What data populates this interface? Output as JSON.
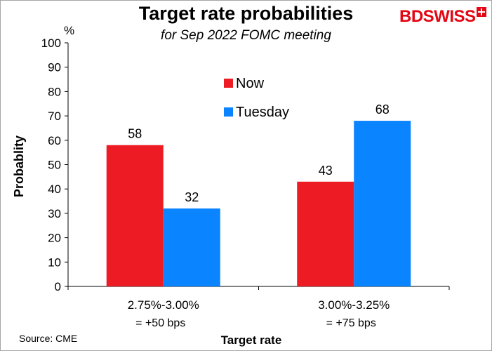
{
  "header": {
    "title": "Target rate probabilities",
    "subtitle": "for Sep 2022 FOMC meeting",
    "logo_text": "BDSWISS",
    "logo_icon": "plus-icon",
    "brand_color": "#e30613"
  },
  "footer": {
    "source": "Source: CME"
  },
  "chart_data": {
    "type": "bar",
    "title": "Target rate probabilities",
    "subtitle": "for Sep 2022 FOMC meeting",
    "xlabel": "Target rate",
    "ylabel": "Probablity",
    "y_unit": "%",
    "ylim": [
      0,
      100
    ],
    "yticks": [
      0,
      10,
      20,
      30,
      40,
      50,
      60,
      70,
      80,
      90,
      100
    ],
    "grid": false,
    "legend_position": "top-center",
    "categories": [
      [
        "2.75%-3.00%",
        "= +50 bps"
      ],
      [
        "3.00%-3.25%",
        "= +75 bps"
      ]
    ],
    "series": [
      {
        "name": "Now",
        "color": "#ed1c24",
        "values": [
          58,
          43
        ],
        "labels": [
          "58",
          "43"
        ]
      },
      {
        "name": "Tuesday",
        "color": "#0b84ff",
        "values": [
          32,
          68
        ],
        "labels": [
          "32",
          "68"
        ]
      }
    ]
  }
}
